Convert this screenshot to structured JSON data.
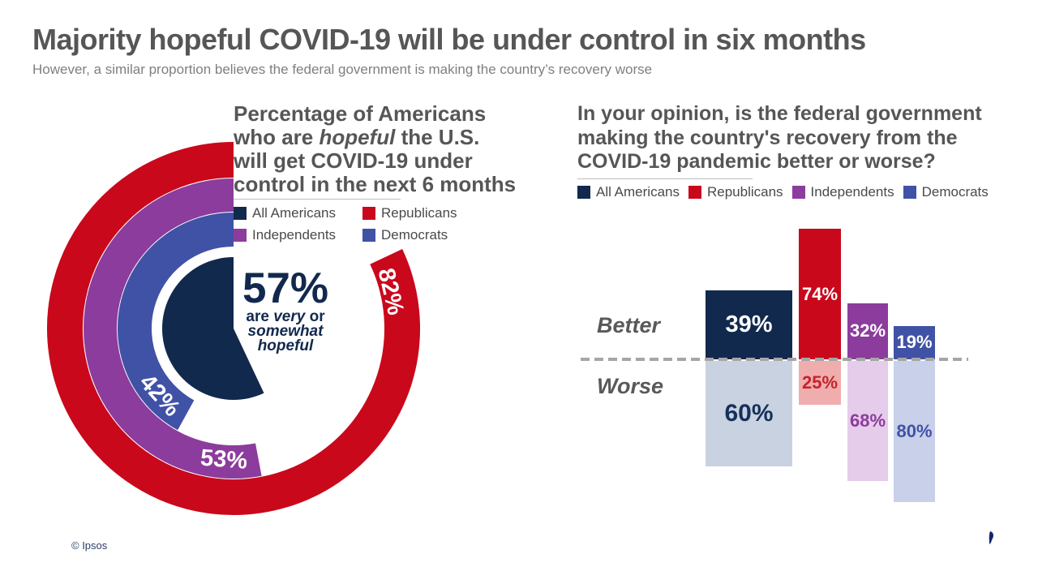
{
  "header": {
    "title": "Majority hopeful COVID-19 will be under control in six months",
    "subtitle": "However, a similar proportion believes the federal government is making the country’s recovery worse"
  },
  "footer": {
    "copyright": "© Ipsos",
    "logo_text": "Ipsos",
    "logo_blue": "#1e3d99",
    "logo_teal": "#00a0a0"
  },
  "chart_data": [
    {
      "type": "donut",
      "title_lines": [
        [
          {
            "text": "Percentage of Americans"
          }
        ],
        [
          {
            "text": "who are "
          },
          {
            "text": "hopeful",
            "italic": true
          },
          {
            "text": " the U.S."
          }
        ],
        [
          {
            "text": "will get COVID-19 under"
          }
        ],
        [
          {
            "text": "control in the next 6 months"
          }
        ]
      ],
      "legend": [
        {
          "label": "All Americans",
          "color": "#12294e"
        },
        {
          "label": "Republicans",
          "color": "#c9081c"
        },
        {
          "label": "Independents",
          "color": "#8c3c9c"
        },
        {
          "label": "Democrats",
          "color": "#4052a5"
        }
      ],
      "start": "12 o'clock",
      "direction": "counterclockwise",
      "center": {
        "value_label": "57%",
        "sub_lines": [
          [
            {
              "text": "are "
            },
            {
              "text": "very",
              "italic": true
            },
            {
              "text": " or"
            }
          ],
          [
            {
              "text": "somewhat",
              "italic": true
            }
          ],
          [
            {
              "text": "hopeful",
              "italic": true
            }
          ]
        ]
      },
      "series": [
        {
          "name": "All Americans",
          "value": 57,
          "label": "57%",
          "color": "#12294e",
          "shape": "pie"
        },
        {
          "name": "Democrats",
          "value": 42,
          "label": "42%",
          "color": "#4052a5",
          "shape": "ring"
        },
        {
          "name": "Independents",
          "value": 53,
          "label": "53%",
          "color": "#8c3c9c",
          "shape": "ring"
        },
        {
          "name": "Republicans",
          "value": 82,
          "label": "82%",
          "color": "#c9081c",
          "shape": "ring"
        }
      ]
    },
    {
      "type": "diverging_bar",
      "title_lines": [
        [
          {
            "text": "In your opinion, is the federal government"
          }
        ],
        [
          {
            "text": "making the country's recovery from the"
          }
        ],
        [
          {
            "text": "COVID-19 pandemic better or worse?"
          }
        ]
      ],
      "legend": [
        {
          "label": "All Americans",
          "color": "#12294e"
        },
        {
          "label": "Republicans",
          "color": "#c9081c"
        },
        {
          "label": "Independents",
          "color": "#8c3c9c"
        },
        {
          "label": "Democrats",
          "color": "#4052a5"
        }
      ],
      "axis": {
        "better_label": "Better",
        "worse_label": "Worse",
        "baseline_color": "#a6a6a6"
      },
      "categories": [
        {
          "name": "All Americans",
          "better": 39,
          "better_label": "39%",
          "worse": 60,
          "worse_label": "60%",
          "color": "#12294e",
          "pale_color": "#c9d2e0",
          "worse_text_color": "#16305b"
        },
        {
          "name": "Republicans",
          "better": 74,
          "better_label": "74%",
          "worse": 25,
          "worse_label": "25%",
          "color": "#c9081c",
          "pale_color": "#f0adad",
          "worse_text_color": "#c5242c"
        },
        {
          "name": "Independents",
          "better": 32,
          "better_label": "32%",
          "worse": 68,
          "worse_label": "68%",
          "color": "#8c3c9c",
          "pale_color": "#e5ccea",
          "worse_text_color": "#8c3c9c"
        },
        {
          "name": "Democrats",
          "better": 19,
          "better_label": "19%",
          "worse": 80,
          "worse_label": "80%",
          "color": "#4052a5",
          "pale_color": "#c8d0ea",
          "worse_text_color": "#4052a5"
        }
      ]
    }
  ]
}
